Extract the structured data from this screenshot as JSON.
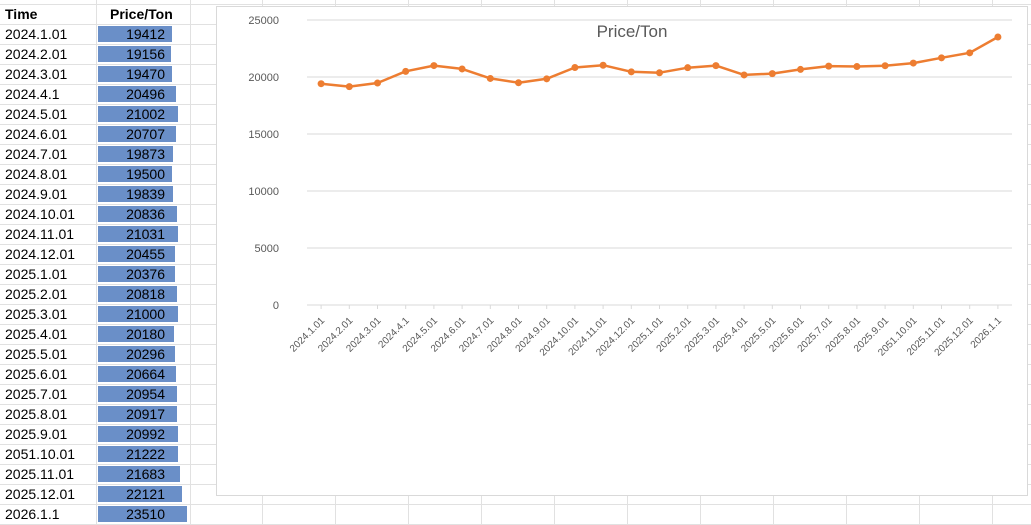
{
  "table": {
    "headers": {
      "time": "Time",
      "price": "Price/Ton"
    },
    "rows": [
      {
        "time": "2024.1.01",
        "price": "19412"
      },
      {
        "time": "2024.2.01",
        "price": "19156"
      },
      {
        "time": "2024.3.01",
        "price": "19470"
      },
      {
        "time": "2024.4.1",
        "price": "20496"
      },
      {
        "time": "2024.5.01",
        "price": "21002"
      },
      {
        "time": "2024.6.01",
        "price": "20707"
      },
      {
        "time": "2024.7.01",
        "price": "19873"
      },
      {
        "time": "2024.8.01",
        "price": "19500"
      },
      {
        "time": "2024.9.01",
        "price": "19839"
      },
      {
        "time": "2024.10.01",
        "price": "20836"
      },
      {
        "time": "2024.11.01",
        "price": "21031"
      },
      {
        "time": "2024.12.01",
        "price": "20455"
      },
      {
        "time": "2025.1.01",
        "price": "20376"
      },
      {
        "time": "2025.2.01",
        "price": "20818"
      },
      {
        "time": "2025.3.01",
        "price": "21000"
      },
      {
        "time": "2025.4.01",
        "price": "20180"
      },
      {
        "time": "2025.5.01",
        "price": "20296"
      },
      {
        "time": "2025.6.01",
        "price": "20664"
      },
      {
        "time": "2025.7.01",
        "price": "20954"
      },
      {
        "time": "2025.8.01",
        "price": "20917"
      },
      {
        "time": "2025.9.01",
        "price": "20992"
      },
      {
        "time": "2051.10.01",
        "price": "21222"
      },
      {
        "time": "2025.11.01",
        "price": "21683"
      },
      {
        "time": "2025.12.01",
        "price": "22121"
      },
      {
        "time": "2026.1.1",
        "price": "23510"
      }
    ],
    "bar_color": "#6a8fc8",
    "bar_max": 23510
  },
  "chart_data": {
    "type": "line",
    "title": "Price/Ton",
    "categories": [
      "2024.1.01",
      "2024.2.01",
      "2024.3.01",
      "2024.4.1",
      "2024.5.01",
      "2024.6.01",
      "2024.7.01",
      "2024.8.01",
      "2024.9.01",
      "2024.10.01",
      "2024.11.01",
      "2024.12.01",
      "2025.1.01",
      "2025.2.01",
      "2025.3.01",
      "2025.4.01",
      "2025.5.01",
      "2025.6.01",
      "2025.7.01",
      "2025.8.01",
      "2025.9.01",
      "2051.10.01",
      "2025.11.01",
      "2025.12.01",
      "2026.1.1"
    ],
    "series": [
      {
        "values": [
          19412,
          19156,
          19470,
          20496,
          21002,
          20707,
          19873,
          19500,
          19839,
          20836,
          21031,
          20455,
          20376,
          20818,
          21000,
          20180,
          20296,
          20664,
          20954,
          20917,
          20992,
          21222,
          21683,
          22121,
          23510
        ],
        "color": "#ed7d31"
      }
    ],
    "ylim": [
      0,
      25000
    ],
    "yticks": [
      0,
      5000,
      10000,
      15000,
      20000,
      25000
    ],
    "grid": true,
    "legend": "none",
    "xlabel": "",
    "ylabel": ""
  }
}
